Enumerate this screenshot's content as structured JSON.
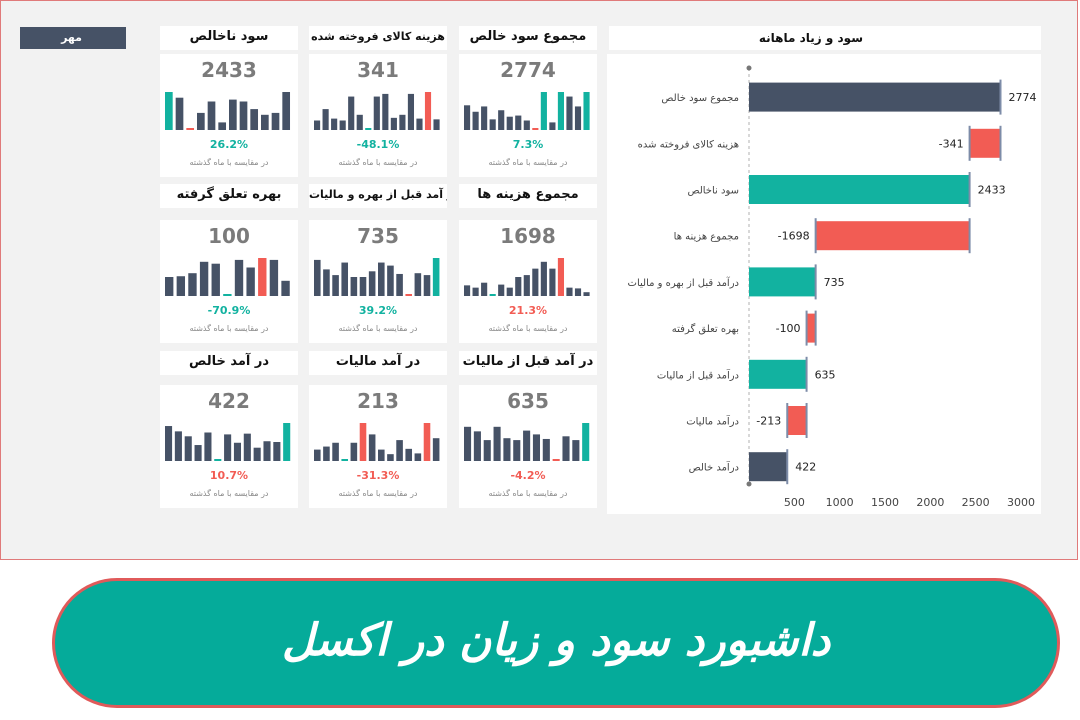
{
  "month": "مهر",
  "comparison_note": "در مقایسه با ماه گذشته",
  "colors": {
    "dark": "#465266",
    "teal": "#12b2a0",
    "red": "#f25c54"
  },
  "kpis": [
    {
      "title": "مجموع سود خالص",
      "value": "2774",
      "change": "7.3%",
      "change_color": "#12b2a0",
      "bars": [
        {
          "v": 0.65,
          "c": "d"
        },
        {
          "v": 0.48,
          "c": "d"
        },
        {
          "v": 0.62,
          "c": "d"
        },
        {
          "v": 0.28,
          "c": "d"
        },
        {
          "v": 0.52,
          "c": "d"
        },
        {
          "v": 0.35,
          "c": "d"
        },
        {
          "v": 0.38,
          "c": "d"
        },
        {
          "v": 0.25,
          "c": "d"
        },
        {
          "v": 0.04,
          "c": "r"
        },
        {
          "v": 1.0,
          "c": "t"
        },
        {
          "v": 0.2,
          "c": "d"
        },
        {
          "v": 1.0,
          "c": "t"
        },
        {
          "v": 0.88,
          "c": "d"
        },
        {
          "v": 0.62,
          "c": "d"
        },
        {
          "v": 1.0,
          "c": "t"
        }
      ]
    },
    {
      "title": "هزینه کالای فروخته شده",
      "value": "341",
      "change": "-48.1%",
      "change_color": "#12b2a0",
      "bars": [
        {
          "v": 0.25,
          "c": "d"
        },
        {
          "v": 0.55,
          "c": "d"
        },
        {
          "v": 0.3,
          "c": "d"
        },
        {
          "v": 0.25,
          "c": "d"
        },
        {
          "v": 0.88,
          "c": "d"
        },
        {
          "v": 0.4,
          "c": "d"
        },
        {
          "v": 0.02,
          "c": "t"
        },
        {
          "v": 0.88,
          "c": "d"
        },
        {
          "v": 0.95,
          "c": "d"
        },
        {
          "v": 0.32,
          "c": "d"
        },
        {
          "v": 0.4,
          "c": "d"
        },
        {
          "v": 0.95,
          "c": "d"
        },
        {
          "v": 0.3,
          "c": "d"
        },
        {
          "v": 1.0,
          "c": "r"
        },
        {
          "v": 0.28,
          "c": "d"
        }
      ]
    },
    {
      "title": "سود ناخالص",
      "value": "2433",
      "change": "26.2%",
      "change_color": "#12b2a0",
      "bars": [
        {
          "v": 1.0,
          "c": "t"
        },
        {
          "v": 0.85,
          "c": "d"
        },
        {
          "v": 0.05,
          "c": "r"
        },
        {
          "v": 0.45,
          "c": "d"
        },
        {
          "v": 0.75,
          "c": "d"
        },
        {
          "v": 0.2,
          "c": "d"
        },
        {
          "v": 0.8,
          "c": "d"
        },
        {
          "v": 0.75,
          "c": "d"
        },
        {
          "v": 0.55,
          "c": "d"
        },
        {
          "v": 0.4,
          "c": "d"
        },
        {
          "v": 0.45,
          "c": "d"
        },
        {
          "v": 1.0,
          "c": "d"
        }
      ]
    },
    {
      "title": "مجموع هزینه ها",
      "value": "1698",
      "change": "21.3%",
      "change_color": "#f25c54",
      "bars": [
        {
          "v": 0.28,
          "c": "d"
        },
        {
          "v": 0.22,
          "c": "d"
        },
        {
          "v": 0.35,
          "c": "d"
        },
        {
          "v": 0.02,
          "c": "t"
        },
        {
          "v": 0.3,
          "c": "d"
        },
        {
          "v": 0.22,
          "c": "d"
        },
        {
          "v": 0.5,
          "c": "d"
        },
        {
          "v": 0.55,
          "c": "d"
        },
        {
          "v": 0.72,
          "c": "d"
        },
        {
          "v": 0.9,
          "c": "d"
        },
        {
          "v": 0.72,
          "c": "d"
        },
        {
          "v": 1.0,
          "c": "r"
        },
        {
          "v": 0.22,
          "c": "d"
        },
        {
          "v": 0.2,
          "c": "d"
        },
        {
          "v": 0.1,
          "c": "d"
        }
      ]
    },
    {
      "title": "در آمد قبل از بهره و مالیات",
      "value": "735",
      "change": "39.2%",
      "change_color": "#12b2a0",
      "bars": [
        {
          "v": 0.95,
          "c": "d"
        },
        {
          "v": 0.7,
          "c": "d"
        },
        {
          "v": 0.55,
          "c": "d"
        },
        {
          "v": 0.88,
          "c": "d"
        },
        {
          "v": 0.5,
          "c": "d"
        },
        {
          "v": 0.5,
          "c": "d"
        },
        {
          "v": 0.65,
          "c": "d"
        },
        {
          "v": 0.88,
          "c": "d"
        },
        {
          "v": 0.8,
          "c": "d"
        },
        {
          "v": 0.58,
          "c": "d"
        },
        {
          "v": 0.05,
          "c": "r"
        },
        {
          "v": 0.6,
          "c": "d"
        },
        {
          "v": 0.55,
          "c": "d"
        },
        {
          "v": 1.0,
          "c": "t"
        }
      ]
    },
    {
      "title": "بهره تعلق گرفته",
      "value": "100",
      "change": "-70.9%",
      "change_color": "#12b2a0",
      "bars": [
        {
          "v": 0.5,
          "c": "d"
        },
        {
          "v": 0.52,
          "c": "d"
        },
        {
          "v": 0.6,
          "c": "d"
        },
        {
          "v": 0.9,
          "c": "d"
        },
        {
          "v": 0.85,
          "c": "d"
        },
        {
          "v": 0.02,
          "c": "t"
        },
        {
          "v": 0.95,
          "c": "d"
        },
        {
          "v": 0.75,
          "c": "d"
        },
        {
          "v": 1.0,
          "c": "r"
        },
        {
          "v": 0.95,
          "c": "d"
        },
        {
          "v": 0.4,
          "c": "d"
        }
      ]
    },
    {
      "title": "در آمد قبل از مالیات",
      "value": "635",
      "change": "-4.2%",
      "change_color": "#f25c54",
      "bars": [
        {
          "v": 0.9,
          "c": "d"
        },
        {
          "v": 0.78,
          "c": "d"
        },
        {
          "v": 0.55,
          "c": "d"
        },
        {
          "v": 0.9,
          "c": "d"
        },
        {
          "v": 0.6,
          "c": "d"
        },
        {
          "v": 0.55,
          "c": "d"
        },
        {
          "v": 0.8,
          "c": "d"
        },
        {
          "v": 0.7,
          "c": "d"
        },
        {
          "v": 0.58,
          "c": "d"
        },
        {
          "v": 0.02,
          "c": "r"
        },
        {
          "v": 0.65,
          "c": "d"
        },
        {
          "v": 0.55,
          "c": "d"
        },
        {
          "v": 1.0,
          "c": "t"
        }
      ]
    },
    {
      "title": "در آمد مالیات",
      "value": "213",
      "change": "-31.3%",
      "change_color": "#f25c54",
      "bars": [
        {
          "v": 0.3,
          "c": "d"
        },
        {
          "v": 0.38,
          "c": "d"
        },
        {
          "v": 0.48,
          "c": "d"
        },
        {
          "v": 0.02,
          "c": "t"
        },
        {
          "v": 0.48,
          "c": "d"
        },
        {
          "v": 1.0,
          "c": "r"
        },
        {
          "v": 0.7,
          "c": "d"
        },
        {
          "v": 0.3,
          "c": "d"
        },
        {
          "v": 0.18,
          "c": "d"
        },
        {
          "v": 0.55,
          "c": "d"
        },
        {
          "v": 0.32,
          "c": "d"
        },
        {
          "v": 0.2,
          "c": "d"
        },
        {
          "v": 1.0,
          "c": "r"
        },
        {
          "v": 0.6,
          "c": "d"
        }
      ]
    },
    {
      "title": "در آمد خالص",
      "value": "422",
      "change": "10.7%",
      "change_color": "#f25c54",
      "bars": [
        {
          "v": 0.92,
          "c": "d"
        },
        {
          "v": 0.78,
          "c": "d"
        },
        {
          "v": 0.65,
          "c": "d"
        },
        {
          "v": 0.42,
          "c": "d"
        },
        {
          "v": 0.75,
          "c": "d"
        },
        {
          "v": 0.02,
          "c": "t"
        },
        {
          "v": 0.7,
          "c": "d"
        },
        {
          "v": 0.48,
          "c": "d"
        },
        {
          "v": 0.72,
          "c": "d"
        },
        {
          "v": 0.35,
          "c": "d"
        },
        {
          "v": 0.52,
          "c": "d"
        },
        {
          "v": 0.5,
          "c": "d"
        },
        {
          "v": 1.0,
          "c": "t"
        }
      ]
    }
  ],
  "chart_title": "سود و زیاد ماهانه",
  "chart_data": {
    "type": "bar",
    "orientation": "horizontal-waterfall",
    "categories": [
      "مجموع سود خالص",
      "هزینه کالای فروخته شده",
      "سود ناخالص",
      "مجموع هزینه ها",
      "درآمد قبل از بهره و مالیات",
      "بهره تعلق گرفته",
      "درآمد قبل از مالیات",
      "درآمد مالیات",
      "درآمد خالص"
    ],
    "values": [
      2774,
      -341,
      2433,
      -1698,
      735,
      -100,
      635,
      -213,
      422
    ],
    "value_labels": [
      "2774",
      "-341",
      "2433",
      "-1698",
      "735",
      "-100",
      "635",
      "-213",
      "422"
    ],
    "bar_types": [
      "total",
      "decrease",
      "subtotal",
      "decrease",
      "subtotal",
      "decrease",
      "subtotal",
      "decrease",
      "total"
    ],
    "xticks": [
      "500",
      "1000",
      "1500",
      "2000",
      "2500",
      "3000"
    ],
    "xlim": [
      0,
      3000
    ],
    "grid": false
  },
  "banner_text": "داشبورد سود و زیان در اکسل"
}
